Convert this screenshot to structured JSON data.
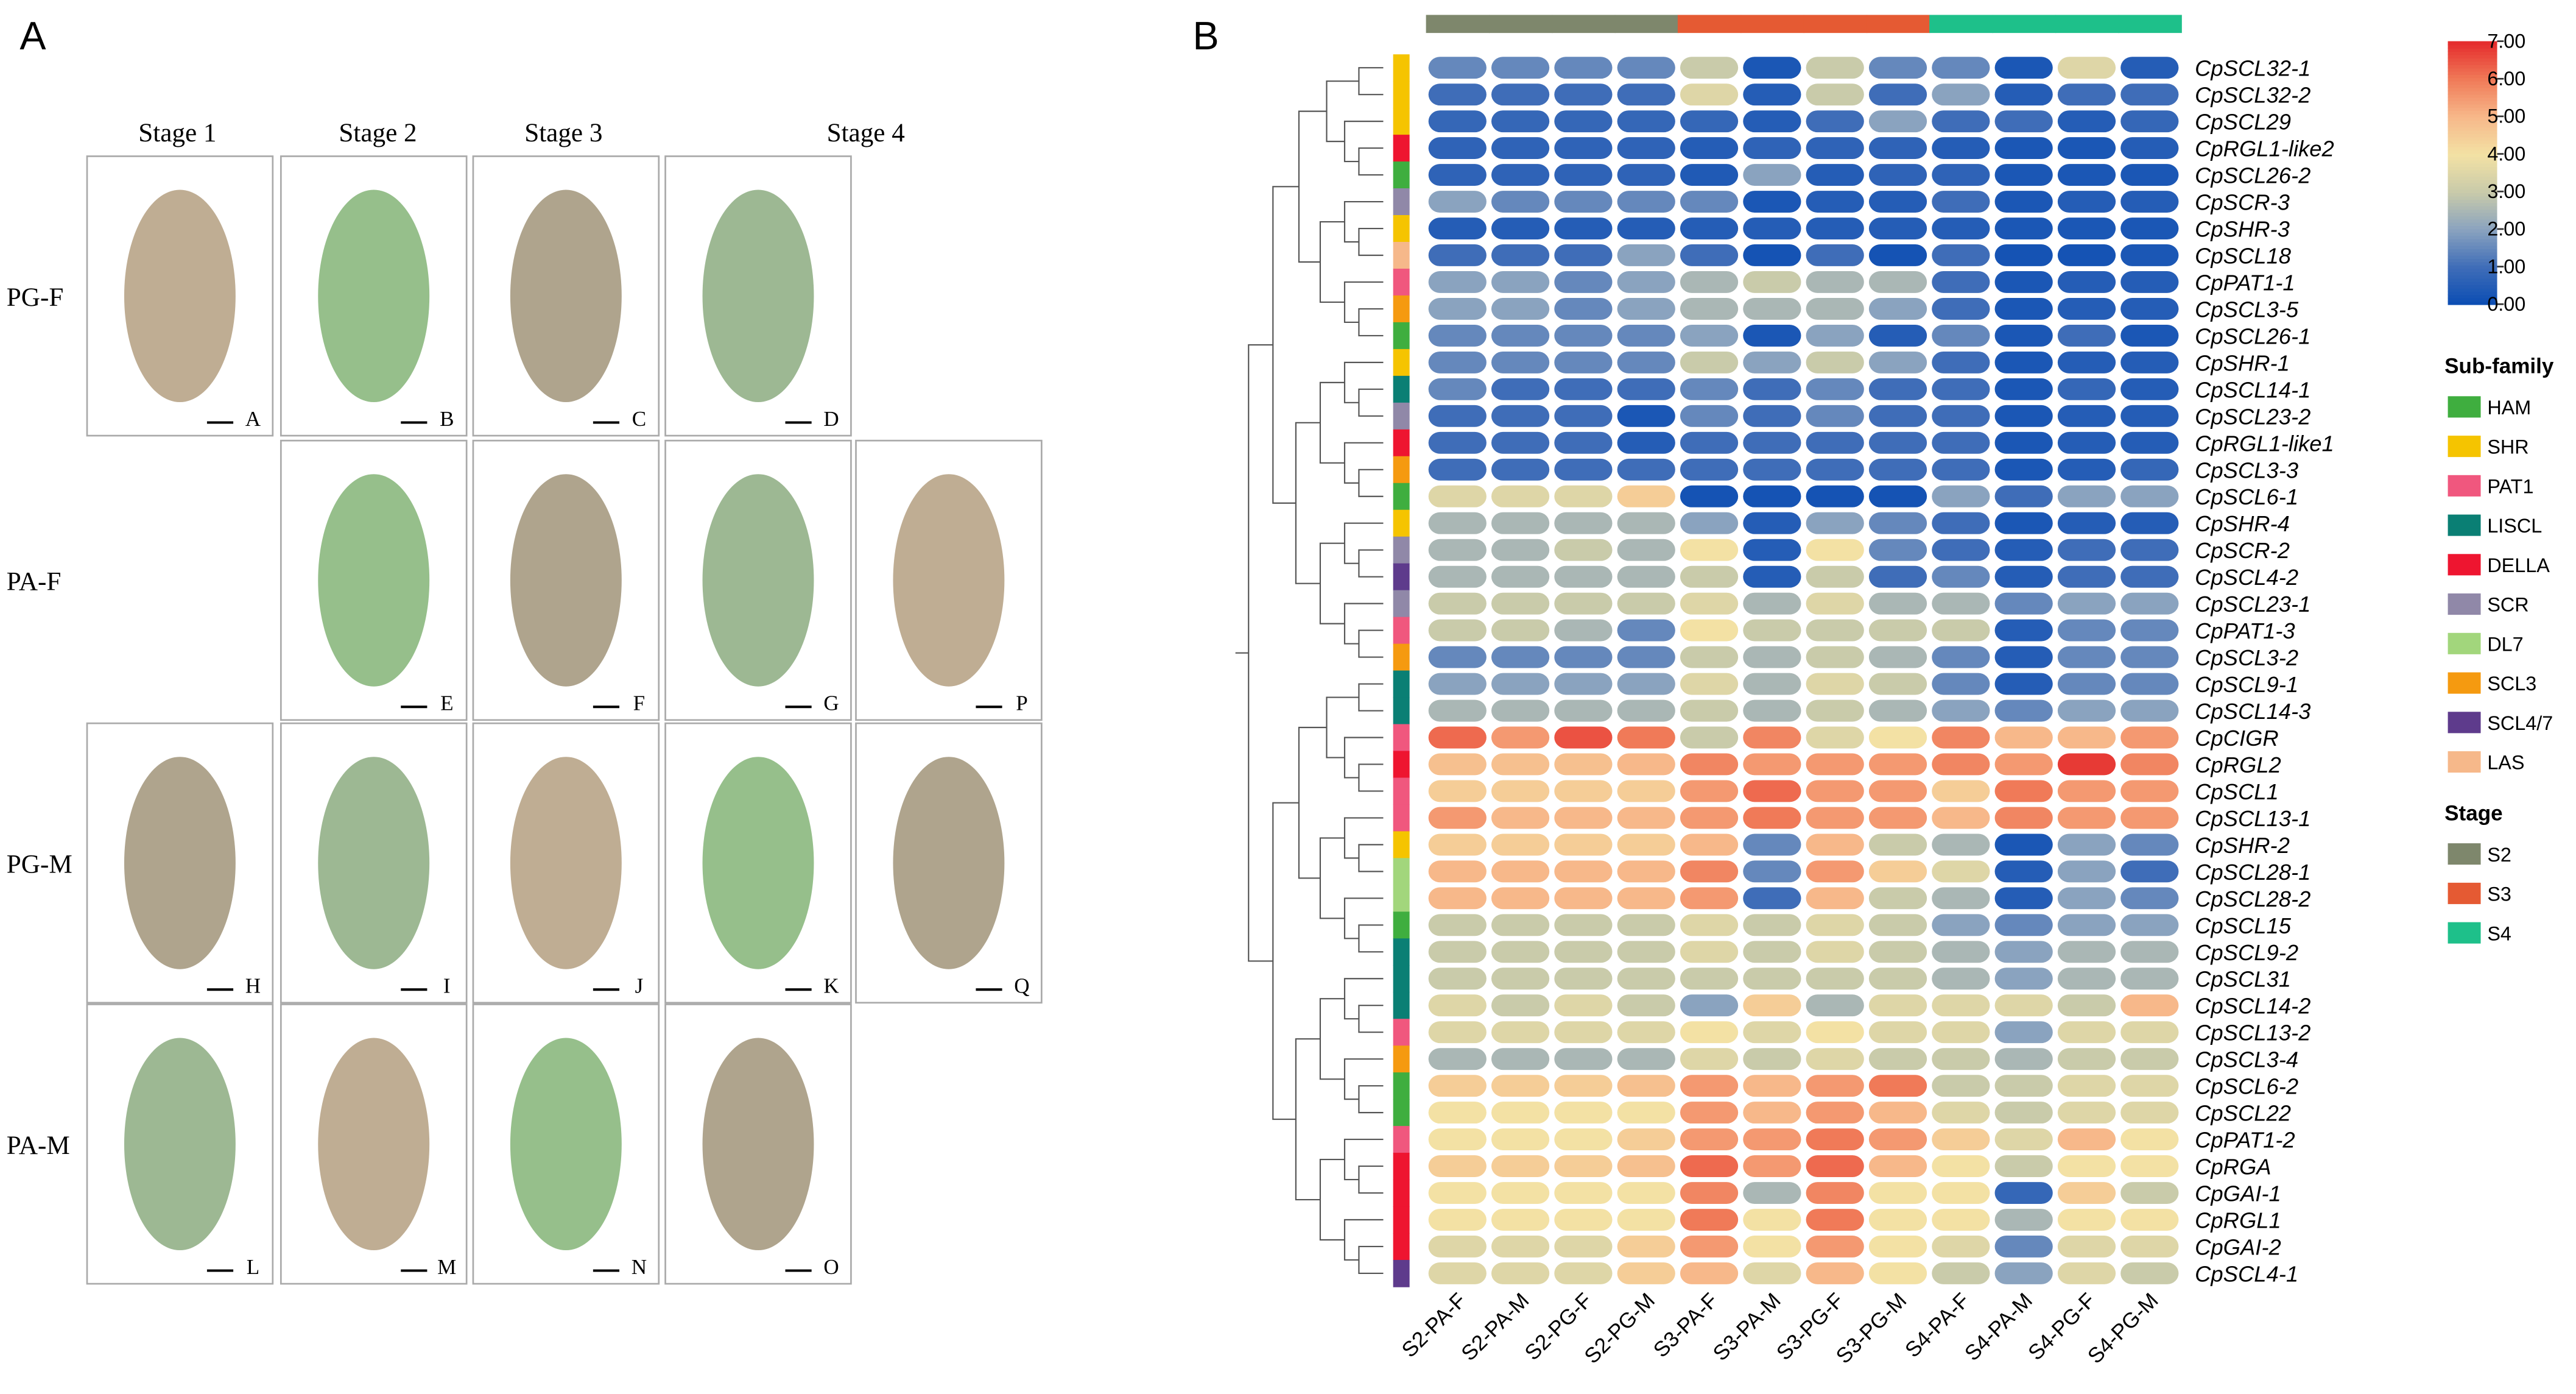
{
  "panel_a": {
    "letter": "A",
    "stages": [
      "Stage 1",
      "Stage 2",
      "Stage 3",
      "Stage 4"
    ],
    "rows": [
      {
        "label": "PG-F",
        "photos": [
          "A",
          "B",
          "C",
          "D"
        ]
      },
      {
        "label": "PA-F",
        "photos": [
          "E",
          "F",
          "G",
          "P"
        ]
      },
      {
        "label": "PG-M",
        "photos": [
          "H",
          "I",
          "J",
          "K",
          "Q"
        ]
      },
      {
        "label": "PA-M",
        "photos": [
          "L",
          "M",
          "N",
          "O"
        ]
      }
    ]
  },
  "chart_data": {
    "type": "heatmap",
    "letter": "B",
    "columns": [
      "S2-PA-F",
      "S2-PA-M",
      "S2-PG-F",
      "S2-PG-M",
      "S3-PA-F",
      "S3-PA-M",
      "S3-PG-F",
      "S3-PG-M",
      "S4-PA-F",
      "S4-PA-M",
      "S4-PG-F",
      "S4-PG-M"
    ],
    "column_stage": [
      0,
      0,
      0,
      0,
      1,
      1,
      1,
      1,
      2,
      2,
      2,
      2
    ],
    "rows": [
      "CpSCL32-1",
      "CpSCL32-2",
      "CpSCL29",
      "CpRGL1-like2",
      "CpSCL26-2",
      "CpSCR-3",
      "CpSHR-3",
      "CpSCL18",
      "CpPAT1-1",
      "CpSCL3-5",
      "CpSCL26-1",
      "CpSHR-1",
      "CpSCL14-1",
      "CpSCL23-2",
      "CpRGL1-like1",
      "CpSCL3-3",
      "CpSCL6-1",
      "CpSHR-4",
      "CpSCR-2",
      "CpSCL4-2",
      "CpSCL23-1",
      "CpPAT1-3",
      "CpSCL3-2",
      "CpSCL9-1",
      "CpSCL14-3",
      "CpCIGR",
      "CpRGL2",
      "CpSCL1",
      "CpSCL13-1",
      "CpSHR-2",
      "CpSCL28-1",
      "CpSCL28-2",
      "CpSCL15",
      "CpSCL9-2",
      "CpSCL31",
      "CpSCL14-2",
      "CpSCL13-2",
      "CpSCL3-4",
      "CpSCL6-2",
      "CpSCL22",
      "CpPAT1-2",
      "CpRGA",
      "CpGAI-1",
      "CpRGL1",
      "CpGAI-2",
      "CpSCL4-1"
    ],
    "row_subfamily": [
      1,
      1,
      1,
      4,
      0,
      5,
      1,
      9,
      2,
      7,
      0,
      1,
      3,
      5,
      4,
      7,
      0,
      1,
      5,
      8,
      5,
      2,
      7,
      3,
      3,
      2,
      4,
      2,
      2,
      1,
      6,
      6,
      0,
      3,
      3,
      3,
      2,
      7,
      0,
      0,
      2,
      4,
      4,
      4,
      4,
      8
    ],
    "values": [
      [
        1.5,
        1.5,
        1.5,
        1.5,
        3,
        0.3,
        3,
        1.5,
        1.5,
        0.3,
        3.5,
        0.5
      ],
      [
        1,
        1,
        1,
        1,
        3.5,
        0.5,
        3,
        1,
        2,
        0.5,
        1,
        1
      ],
      [
        0.8,
        0.8,
        0.8,
        0.8,
        0.8,
        0.5,
        1,
        2,
        1,
        1,
        0.5,
        0.8
      ],
      [
        0.7,
        0.7,
        0.7,
        0.7,
        0.5,
        0.7,
        0.7,
        0.7,
        0.5,
        0.3,
        0.3,
        0.5
      ],
      [
        0.7,
        0.7,
        0.7,
        0.7,
        0.4,
        2,
        0.5,
        0.7,
        0.7,
        0.3,
        0.3,
        0.3
      ],
      [
        2,
        1.5,
        1.5,
        1.5,
        1.5,
        0.3,
        0.5,
        0.5,
        1,
        0.3,
        0.5,
        0.5
      ],
      [
        0.5,
        0.5,
        0.5,
        0.5,
        0.5,
        0.5,
        0.5,
        0.5,
        0.5,
        0.3,
        0.3,
        0.3
      ],
      [
        1,
        1,
        1,
        2,
        1,
        0.2,
        1,
        0.2,
        1,
        0.2,
        0.2,
        0.3
      ],
      [
        2,
        2,
        1.5,
        2,
        2.5,
        3,
        2.5,
        2.5,
        1,
        0.3,
        0.5,
        0.5
      ],
      [
        2,
        2,
        1.5,
        2,
        2.5,
        2.5,
        2.5,
        2,
        1,
        0.3,
        0.5,
        0.5
      ],
      [
        1.5,
        1.5,
        1.5,
        1.5,
        2,
        0.3,
        2,
        0.5,
        1.5,
        0.3,
        1,
        0.3
      ],
      [
        1.5,
        1.5,
        1.5,
        1.5,
        3,
        2,
        3,
        2,
        1,
        0.3,
        0.5,
        0.5
      ],
      [
        1.5,
        1,
        1,
        1,
        1.5,
        1,
        1.5,
        1,
        1,
        0.3,
        0.8,
        0.5
      ],
      [
        1,
        1,
        1,
        0.3,
        1.5,
        1,
        1.5,
        1,
        1,
        0.3,
        0.5,
        0.5
      ],
      [
        1,
        1,
        1,
        0.5,
        1,
        1,
        1,
        1,
        1,
        0.3,
        0.5,
        0.5
      ],
      [
        1,
        1,
        1,
        1,
        1,
        1,
        1,
        1,
        1,
        0.3,
        0.5,
        0.8
      ],
      [
        3.5,
        3.5,
        3.5,
        4.5,
        0.2,
        0.2,
        0.2,
        0.2,
        2,
        1,
        2,
        2
      ],
      [
        2.5,
        2.5,
        2.5,
        2.5,
        2,
        0.5,
        2,
        1.5,
        1,
        0.3,
        0.5,
        0.5
      ],
      [
        2.5,
        2.5,
        3,
        2.5,
        4,
        0.5,
        4,
        1.5,
        1,
        0.5,
        1,
        1
      ],
      [
        2.5,
        2.5,
        2.5,
        2.5,
        3,
        0.5,
        3,
        1,
        1.5,
        0.5,
        1,
        1
      ],
      [
        3,
        3,
        3,
        3,
        3.5,
        2.5,
        3.5,
        2.5,
        2.5,
        1.5,
        2,
        2
      ],
      [
        3,
        3,
        2.5,
        1.5,
        4,
        3,
        3,
        3,
        3,
        0.5,
        1.5,
        1.5
      ],
      [
        1.5,
        1.5,
        1.5,
        1.5,
        3,
        2.5,
        3,
        2.5,
        1.5,
        0.5,
        1.5,
        1.5
      ],
      [
        2,
        2,
        2,
        2,
        3.5,
        2.5,
        3.5,
        3,
        1.5,
        0.5,
        1.5,
        1.5
      ],
      [
        2.5,
        2.5,
        2.5,
        2.5,
        3,
        2.5,
        3,
        2.5,
        2,
        1.5,
        2,
        2
      ],
      [
        6.2,
        5.5,
        6.5,
        6,
        3,
        5.8,
        3.5,
        4,
        5.8,
        5,
        5,
        5.5
      ],
      [
        4.8,
        4.8,
        4.8,
        5,
        5.8,
        5.5,
        5.5,
        5.5,
        5.8,
        5.5,
        6.8,
        5.8
      ],
      [
        4.5,
        4.5,
        4.5,
        4.5,
        5.5,
        6.2,
        5.5,
        5.5,
        4.5,
        6,
        5.5,
        5.5
      ],
      [
        5.5,
        5,
        5,
        5,
        5.5,
        6,
        5.5,
        5.5,
        5,
        5.8,
        5.5,
        5.5
      ],
      [
        4.5,
        4.5,
        4.5,
        4.5,
        5,
        1.5,
        5,
        3,
        2.5,
        0.3,
        2,
        1.5
      ],
      [
        5,
        5,
        5,
        5,
        5.8,
        1.5,
        5.5,
        4.5,
        3.5,
        0.5,
        2,
        1
      ],
      [
        5,
        5,
        5,
        5,
        5.5,
        1,
        5,
        3,
        2.5,
        0.5,
        2,
        1.5
      ],
      [
        3,
        3,
        3,
        3,
        3.5,
        3,
        3.5,
        3,
        2,
        1.5,
        2,
        2
      ],
      [
        3,
        3,
        3,
        3,
        3.5,
        3,
        3.5,
        3,
        2.5,
        2,
        2.5,
        2.5
      ],
      [
        3,
        3,
        3,
        3,
        3,
        3,
        3,
        3,
        2.5,
        2,
        2.5,
        2.5
      ],
      [
        3.5,
        3,
        3.5,
        3,
        2,
        4.5,
        2.5,
        3.5,
        3.5,
        3.5,
        3,
        5
      ],
      [
        3.5,
        3.5,
        3.5,
        3.5,
        4,
        3.5,
        4,
        3.5,
        3.5,
        2,
        3.5,
        3.5
      ],
      [
        2.5,
        2.5,
        2.5,
        2.5,
        3.5,
        3,
        3.5,
        3,
        3,
        2.5,
        3,
        3
      ],
      [
        4.5,
        4.5,
        4.5,
        4.8,
        5.5,
        5,
        5.5,
        6,
        3,
        3,
        3.5,
        3.5
      ],
      [
        4,
        4,
        4,
        4,
        5.5,
        5,
        5.5,
        5,
        3.5,
        3,
        3.5,
        3.5
      ],
      [
        4,
        4,
        4,
        4.5,
        5.5,
        5.5,
        6,
        5.5,
        4.5,
        3.5,
        5,
        4
      ],
      [
        4.5,
        4.5,
        4.5,
        4.8,
        6.2,
        5.5,
        6.2,
        5,
        4,
        3,
        4,
        4
      ],
      [
        4,
        4,
        4,
        4,
        5.8,
        2.5,
        5.8,
        4,
        4,
        0.8,
        4.5,
        3
      ],
      [
        4,
        4,
        4,
        4,
        6,
        4,
        6,
        4,
        4,
        2.5,
        4,
        4
      ],
      [
        3.5,
        3.5,
        3.5,
        4.5,
        5.5,
        4,
        5.5,
        4,
        3.5,
        1.5,
        3.5,
        3.5
      ],
      [
        3.5,
        3.5,
        3.5,
        4.5,
        5,
        3.5,
        5,
        4,
        3,
        2,
        3.5,
        3
      ]
    ],
    "zlim": [
      0,
      7
    ],
    "zticks": [
      {
        "value": 0,
        "label": "0.00"
      },
      {
        "value": 1,
        "label": "1.00"
      },
      {
        "value": 2,
        "label": "2.00"
      },
      {
        "value": 3,
        "label": "3.00"
      },
      {
        "value": 4,
        "label": "4.00"
      },
      {
        "value": 5,
        "label": "5.00"
      },
      {
        "value": 6,
        "label": "6.00"
      },
      {
        "value": 7,
        "label": "7.00"
      }
    ],
    "colorscale": [
      "#0b4db3",
      "#3f6db8",
      "#8aa3bf",
      "#c9cbaa",
      "#f3e1a4",
      "#f7b88a",
      "#f07a58",
      "#e52a2c"
    ],
    "subfamily_legend": {
      "title": "Sub-family",
      "items": [
        {
          "name": "HAM",
          "color": "#3fae3f"
        },
        {
          "name": "SHR",
          "color": "#f5c400"
        },
        {
          "name": "PAT1",
          "color": "#f0577e"
        },
        {
          "name": "LISCL",
          "color": "#0a7f74"
        },
        {
          "name": "DELLA",
          "color": "#ee1530"
        },
        {
          "name": "SCR",
          "color": "#9088a8"
        },
        {
          "name": "DL7",
          "color": "#a2d67c"
        },
        {
          "name": "SCL3",
          "color": "#f59a10"
        },
        {
          "name": "SCL4/7",
          "color": "#5e3b8c"
        },
        {
          "name": "LAS",
          "color": "#f6b88a"
        }
      ]
    },
    "stage_legend": {
      "title": "Stage",
      "items": [
        {
          "name": "S2",
          "color": "#7e876c"
        },
        {
          "name": "S3",
          "color": "#e55a33"
        },
        {
          "name": "S4",
          "color": "#1ec08a"
        }
      ]
    }
  }
}
